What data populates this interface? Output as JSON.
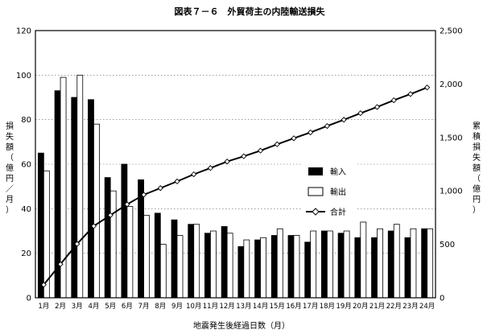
{
  "chart_data": {
    "type": "bar",
    "title": "図表７－６　外貿荷主の内陸輸送損失",
    "xlabel": "地震発生後経過日数（月）",
    "ylabel_left": "損失額（億円／月）",
    "ylabel_right": "累積損失額（億円）",
    "categories": [
      "1月",
      "2月",
      "3月",
      "4月",
      "5月",
      "6月",
      "7月",
      "8月",
      "9月",
      "10月",
      "11月",
      "12月",
      "13月",
      "14月",
      "15月",
      "16月",
      "17月",
      "18月",
      "19月",
      "20月",
      "21月",
      "22月",
      "23月",
      "24月"
    ],
    "ylim": [
      0,
      120
    ],
    "yticks": [
      0,
      20,
      40,
      60,
      80,
      100,
      120
    ],
    "y2lim": [
      0,
      2500
    ],
    "y2ticks": [
      "0",
      "500",
      "1,000",
      "1,500",
      "2,000",
      "2,500"
    ],
    "grid": "horizontal dashed",
    "legend_position": "center-right",
    "series": [
      {
        "name": "輸入",
        "axis": "left",
        "kind": "bar",
        "fill": "#000000",
        "values": [
          65,
          93,
          90,
          89,
          54,
          60,
          53,
          38,
          35,
          33,
          29,
          32,
          23,
          26,
          28,
          28,
          25,
          30,
          29,
          27,
          27,
          30,
          27,
          31
        ]
      },
      {
        "name": "輸出",
        "axis": "left",
        "kind": "bar",
        "fill": "#ffffff",
        "values": [
          57,
          99,
          100,
          78,
          48,
          41,
          37,
          24,
          28,
          33,
          30,
          29,
          26,
          27,
          31,
          28,
          30,
          30,
          30,
          34,
          31,
          33,
          31,
          31
        ]
      },
      {
        "name": "合計",
        "axis": "right",
        "kind": "line",
        "marker": "diamond",
        "values": [
          122,
          314,
          504,
          671,
          773,
          874,
          964,
          1026,
          1089,
          1155,
          1214,
          1275,
          1324,
          1377,
          1436,
          1492,
          1547,
          1607,
          1666,
          1727,
          1785,
          1848,
          1906,
          1968
        ]
      }
    ]
  }
}
